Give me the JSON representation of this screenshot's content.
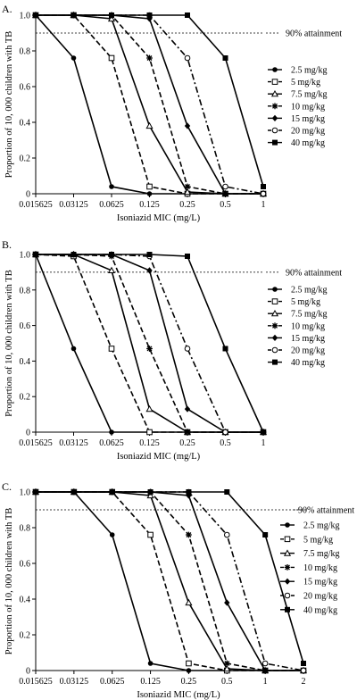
{
  "figure": {
    "series_names": [
      "2.5 mg/kg",
      "5 mg/kg",
      "7.5 mg/kg",
      "10 mg/kg",
      "15 mg/kg",
      "20 mg/kg",
      "40 mg/kg"
    ],
    "series_styles": [
      {
        "marker": "filled-circle",
        "dash": "solid"
      },
      {
        "marker": "open-square",
        "dash": "dashed"
      },
      {
        "marker": "open-triangle",
        "dash": "solid"
      },
      {
        "marker": "star",
        "dash": "dashed"
      },
      {
        "marker": "filled-diamond",
        "dash": "solid"
      },
      {
        "marker": "open-circle",
        "dash": "dashdot"
      },
      {
        "marker": "filled-square",
        "dash": "solid"
      }
    ],
    "colors": {
      "line": "#000000",
      "background": "#ffffff"
    }
  },
  "chart_data": [
    {
      "type": "line",
      "panel_label": "A.",
      "xlabel": "Isoniazid MIC (mg/L)",
      "ylabel": "Proportion of 10, 000 children with TB",
      "x": [
        0.015625,
        0.03125,
        0.0625,
        0.125,
        0.25,
        0.5,
        1
      ],
      "x_tick_labels": [
        "0.015625",
        "0.03125",
        "0.0625",
        "0.125",
        "0.25",
        "0.5",
        "1"
      ],
      "x_scale": "log2",
      "y_ticks": [
        "0",
        "0.2",
        "0.4",
        "0.6",
        "0.8",
        "1.0"
      ],
      "ylim": [
        0,
        1
      ],
      "reference_line": {
        "y": 0.9,
        "label": "90% attainment"
      },
      "series": [
        {
          "name": "2.5 mg/kg",
          "values": [
            1.0,
            0.76,
            0.04,
            0.0,
            0.0,
            0.0,
            0.0
          ]
        },
        {
          "name": "5 mg/kg",
          "values": [
            1.0,
            1.0,
            0.76,
            0.04,
            0.0,
            0.0,
            0.0
          ]
        },
        {
          "name": "7.5 mg/kg",
          "values": [
            1.0,
            1.0,
            0.98,
            0.38,
            0.01,
            0.0,
            0.0
          ]
        },
        {
          "name": "10 mg/kg",
          "values": [
            1.0,
            1.0,
            1.0,
            0.76,
            0.04,
            0.0,
            0.0
          ]
        },
        {
          "name": "15 mg/kg",
          "values": [
            1.0,
            1.0,
            1.0,
            0.98,
            0.38,
            0.0,
            0.0
          ]
        },
        {
          "name": "20 mg/kg",
          "values": [
            1.0,
            1.0,
            1.0,
            1.0,
            0.76,
            0.04,
            0.0
          ]
        },
        {
          "name": "40 mg/kg",
          "values": [
            1.0,
            1.0,
            1.0,
            1.0,
            1.0,
            0.76,
            0.04
          ]
        }
      ]
    },
    {
      "type": "line",
      "panel_label": "B.",
      "xlabel": "Isoniazid MIC (mg/L)",
      "ylabel": "Proportion of 10, 000 children with TB",
      "x": [
        0.015625,
        0.03125,
        0.0625,
        0.125,
        0.25,
        0.5,
        1
      ],
      "x_tick_labels": [
        "0.015625",
        "0.03125",
        "0.0625",
        "0.125",
        "0.25",
        "0.5",
        "1"
      ],
      "x_scale": "log2",
      "y_ticks": [
        "0",
        "0.2",
        "0.4",
        "0.6",
        "0.8",
        "1.0"
      ],
      "ylim": [
        0,
        1
      ],
      "reference_line": {
        "y": 0.9,
        "label": "90% attainment"
      },
      "series": [
        {
          "name": "2.5 mg/kg",
          "values": [
            1.0,
            0.47,
            0.0,
            0.0,
            0.0,
            0.0,
            0.0
          ]
        },
        {
          "name": "5 mg/kg",
          "values": [
            1.0,
            0.99,
            0.47,
            0.0,
            0.0,
            0.0,
            0.0
          ]
        },
        {
          "name": "7.5 mg/kg",
          "values": [
            1.0,
            1.0,
            0.91,
            0.13,
            0.0,
            0.0,
            0.0
          ]
        },
        {
          "name": "10 mg/kg",
          "values": [
            1.0,
            1.0,
            0.99,
            0.47,
            0.0,
            0.0,
            0.0
          ]
        },
        {
          "name": "15 mg/kg",
          "values": [
            1.0,
            1.0,
            1.0,
            0.91,
            0.13,
            0.0,
            0.0
          ]
        },
        {
          "name": "20 mg/kg",
          "values": [
            1.0,
            1.0,
            1.0,
            0.99,
            0.47,
            0.0,
            0.0
          ]
        },
        {
          "name": "40 mg/kg",
          "values": [
            1.0,
            1.0,
            1.0,
            1.0,
            0.99,
            0.47,
            0.0
          ]
        }
      ]
    },
    {
      "type": "line",
      "panel_label": "C.",
      "xlabel": "Isoniazid MIC (mg/L)",
      "ylabel": "Proportion of 10, 000 children with TB",
      "x": [
        0.015625,
        0.03125,
        0.0625,
        0.125,
        0.25,
        0.5,
        1,
        2
      ],
      "x_tick_labels": [
        "0.015625",
        "0.03125",
        "0.0625",
        "0.125",
        "0.25",
        "0.5",
        "1",
        "2"
      ],
      "x_scale": "log2",
      "y_ticks": [
        "0",
        "0.2",
        "0.4",
        "0.6",
        "0.8",
        "1.0"
      ],
      "ylim": [
        0,
        1
      ],
      "reference_line": {
        "y": 0.9,
        "label": "90% attainment"
      },
      "series": [
        {
          "name": "2.5 mg/kg",
          "values": [
            1.0,
            1.0,
            0.76,
            0.04,
            0.0,
            0.0,
            0.0,
            0.0
          ]
        },
        {
          "name": "5 mg/kg",
          "values": [
            1.0,
            1.0,
            1.0,
            0.76,
            0.04,
            0.0,
            0.0,
            0.0
          ]
        },
        {
          "name": "7.5 mg/kg",
          "values": [
            1.0,
            1.0,
            1.0,
            0.98,
            0.38,
            0.01,
            0.0,
            0.0
          ]
        },
        {
          "name": "10 mg/kg",
          "values": [
            1.0,
            1.0,
            1.0,
            1.0,
            0.76,
            0.04,
            0.0,
            0.0
          ]
        },
        {
          "name": "15 mg/kg",
          "values": [
            1.0,
            1.0,
            1.0,
            1.0,
            0.98,
            0.38,
            0.0,
            0.0
          ]
        },
        {
          "name": "20 mg/kg",
          "values": [
            1.0,
            1.0,
            1.0,
            1.0,
            1.0,
            0.76,
            0.04,
            0.0
          ]
        },
        {
          "name": "40 mg/kg",
          "values": [
            1.0,
            1.0,
            1.0,
            1.0,
            1.0,
            1.0,
            0.76,
            0.04
          ]
        }
      ]
    }
  ]
}
